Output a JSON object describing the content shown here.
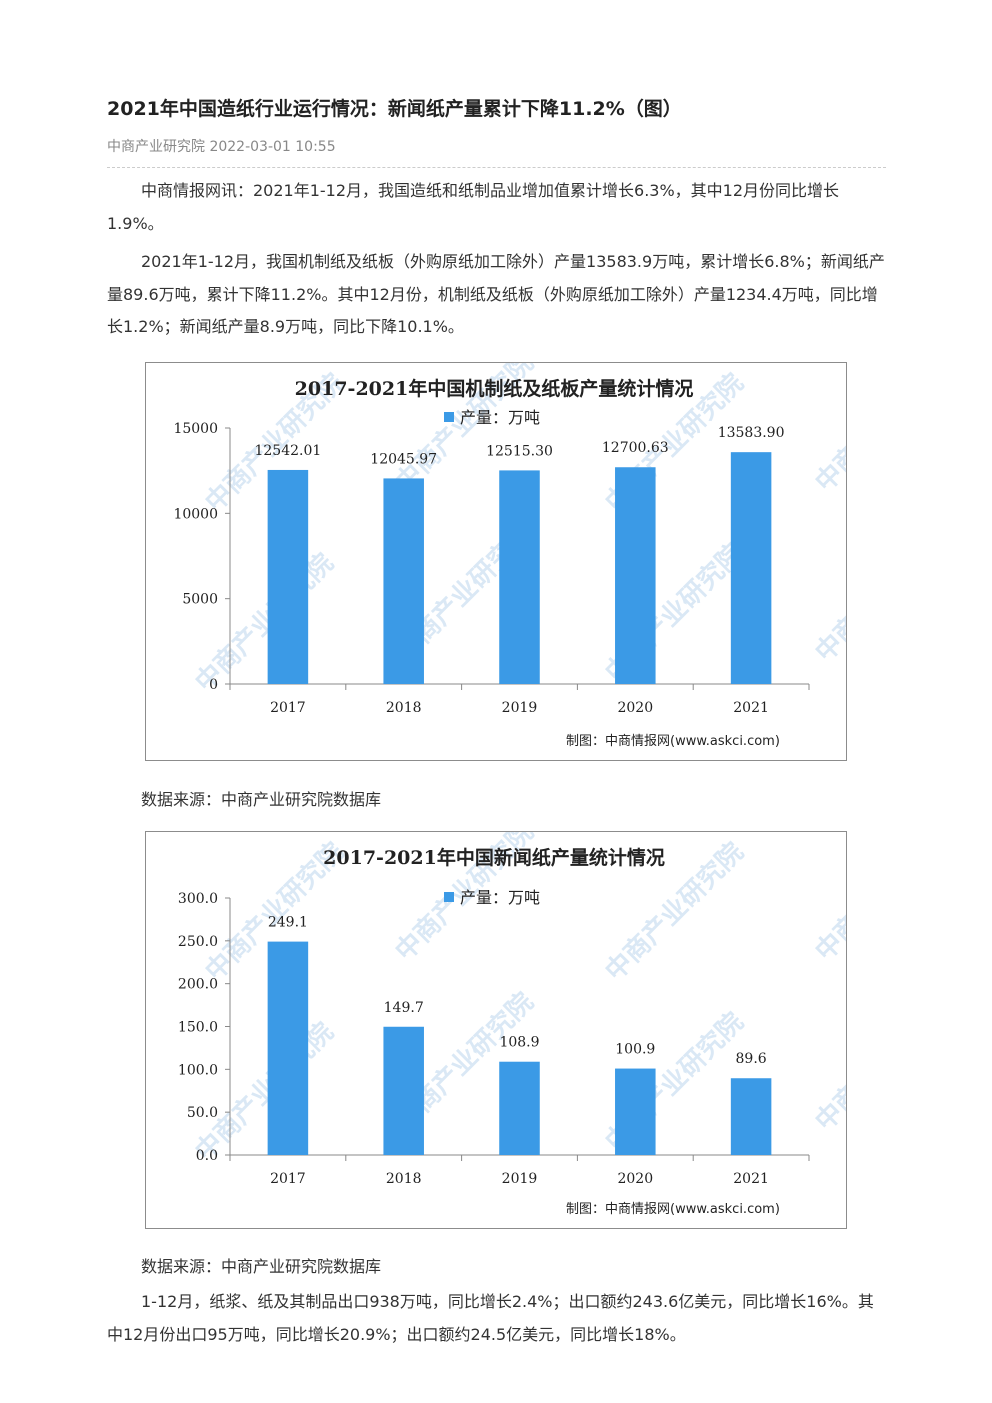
{
  "article": {
    "title": "2021年中国造纸行业运行情况：新闻纸产量累计下降11.2%（图）",
    "source": "中商产业研究院",
    "datetime": "2022-03-01 10:55",
    "paragraphs": [
      "中商情报网讯：2021年1-12月，我国造纸和纸制品业增加值累计增长6.3%，其中12月份同比增长1.9%。",
      "2021年1-12月，我国机制纸及纸板（外购原纸加工除外）产量13583.9万吨，累计增长6.8%；新闻纸产量89.6万吨，累计下降11.2%。其中12月份，机制纸及纸板（外购原纸加工除外）产量1234.4万吨，同比增长1.2%；新闻纸产量8.9万吨，同比下降10.1%。",
      "1-12月，纸浆、纸及其制品出口938万吨，同比增长2.4%；出口额约243.6亿美元，同比增长16%。其中12月份出口95万吨，同比增长20.9%；出口额约24.5亿美元，同比增长18%。"
    ],
    "data_source_1": "数据来源：中商产业研究院数据库",
    "data_source_2": "数据来源：中商产业研究院数据库"
  },
  "watermark": {
    "text": "中商产业研究院"
  },
  "chart_data": [
    {
      "type": "bar",
      "title": "2017-2021年中国机制纸及纸板产量统计情况",
      "legend": "产量：万吨",
      "legend_position": "top",
      "categories": [
        "2017",
        "2018",
        "2019",
        "2020",
        "2021"
      ],
      "values": [
        12542.01,
        12045.97,
        12515.3,
        12700.63,
        13583.9
      ],
      "value_labels": [
        "12542.01",
        "12045.97",
        "12515.30",
        "12700.63",
        "13583.90"
      ],
      "yticks": [
        {
          "value": 0,
          "label": "0"
        },
        {
          "value": 5000,
          "label": "5000"
        },
        {
          "value": 10000,
          "label": "10000"
        },
        {
          "value": 15000,
          "label": "15000"
        }
      ],
      "ylim": [
        0,
        15000
      ],
      "xlabel": "",
      "ylabel": "",
      "grid": false,
      "bar_color": "#3b9ae6",
      "credit": "制图：中商情报网(www.askci.com)"
    },
    {
      "type": "bar",
      "title": "2017-2021年中国新闻纸产量统计情况",
      "legend": "产量：万吨",
      "legend_position": "top",
      "categories": [
        "2017",
        "2018",
        "2019",
        "2020",
        "2021"
      ],
      "values": [
        249.1,
        149.7,
        108.9,
        100.9,
        89.6
      ],
      "value_labels": [
        "249.1",
        "149.7",
        "108.9",
        "100.9",
        "89.6"
      ],
      "yticks": [
        {
          "value": 0,
          "label": "0.0"
        },
        {
          "value": 50,
          "label": "50.0"
        },
        {
          "value": 100,
          "label": "100.0"
        },
        {
          "value": 150,
          "label": "150.0"
        },
        {
          "value": 200,
          "label": "200.0"
        },
        {
          "value": 250,
          "label": "250.0"
        },
        {
          "value": 300,
          "label": "300.0"
        }
      ],
      "ylim": [
        0,
        300
      ],
      "xlabel": "",
      "ylabel": "",
      "grid": false,
      "bar_color": "#3b9ae6",
      "credit": "制图：中商情报网(www.askci.com)"
    }
  ]
}
